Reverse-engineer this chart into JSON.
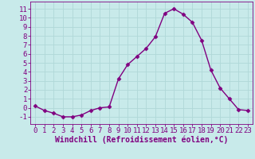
{
  "x": [
    0,
    1,
    2,
    3,
    4,
    5,
    6,
    7,
    8,
    9,
    10,
    11,
    12,
    13,
    14,
    15,
    16,
    17,
    18,
    19,
    20,
    21,
    22,
    23
  ],
  "y": [
    0.2,
    -0.3,
    -0.6,
    -1.0,
    -1.0,
    -0.8,
    -0.3,
    0.0,
    0.1,
    3.2,
    4.8,
    5.7,
    6.6,
    7.9,
    10.5,
    11.0,
    10.4,
    9.5,
    7.5,
    4.2,
    2.2,
    1.0,
    -0.2,
    -0.3
  ],
  "line_color": "#800080",
  "marker": "D",
  "marker_size": 2.5,
  "bg_color": "#c8eaea",
  "grid_color": "#b0d8d8",
  "xlabel": "Windchill (Refroidissement éolien,°C)",
  "xlabel_fontsize": 7,
  "ylim": [
    -1.8,
    11.8
  ],
  "xlim": [
    -0.5,
    23.5
  ],
  "yticks": [
    -1,
    0,
    1,
    2,
    3,
    4,
    5,
    6,
    7,
    8,
    9,
    10,
    11
  ],
  "xticks": [
    0,
    1,
    2,
    3,
    4,
    5,
    6,
    7,
    8,
    9,
    10,
    11,
    12,
    13,
    14,
    15,
    16,
    17,
    18,
    19,
    20,
    21,
    22,
    23
  ],
  "tick_label_fontsize": 6.5,
  "tick_color": "#800080",
  "spine_color": "#800080",
  "line_width": 1.0
}
